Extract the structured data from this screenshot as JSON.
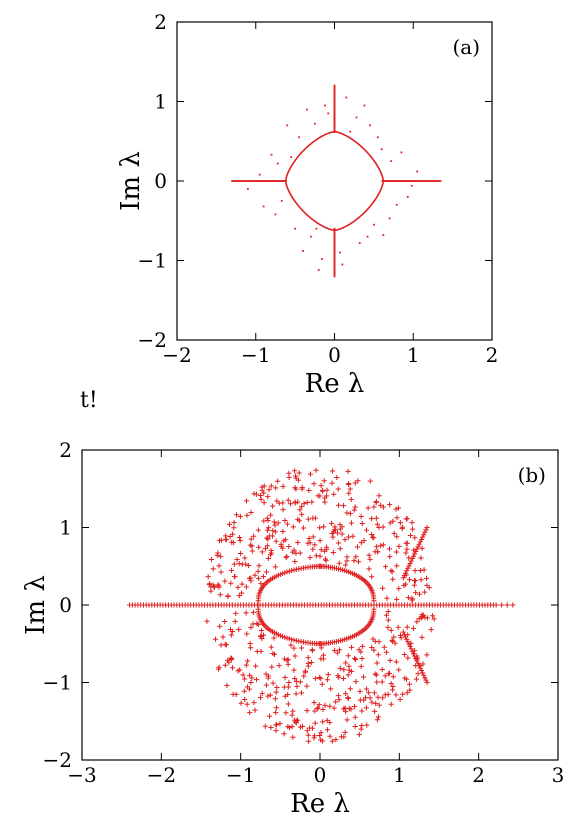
{
  "stray_text": "t!",
  "chart_data": [
    {
      "type": "scatter",
      "panel_label": "(a)",
      "xlabel": "Re λ",
      "ylabel": "Im λ",
      "xlim": [
        -2,
        2
      ],
      "ylim": [
        -2,
        2
      ],
      "x_ticks": [
        -2,
        -1,
        0,
        1,
        2
      ],
      "y_ticks": [
        -2,
        -1,
        0,
        1,
        2
      ],
      "x_tick_labels": [
        "−2",
        "−1",
        "0",
        "1",
        "2"
      ],
      "y_tick_labels": [
        "−2",
        "−1",
        "0",
        "1",
        "2"
      ],
      "marker": "dot",
      "color": "#e02020",
      "grid": false,
      "closed_curve": {
        "shape": "astroid-like",
        "real_extent": 0.62,
        "imag_extent": 0.62,
        "exponent": 1.35
      },
      "real_axis_spread": [
        -1.3,
        1.35
      ],
      "imag_axis_spread": [
        -1.2,
        1.2
      ],
      "scattered_points": [
        [
          -0.8,
          0.33
        ],
        [
          -0.72,
          0.22
        ],
        [
          -0.55,
          0.3
        ],
        [
          -0.9,
          -0.32
        ],
        [
          -0.67,
          -0.25
        ],
        [
          -0.75,
          -0.42
        ],
        [
          0.72,
          0.25
        ],
        [
          0.85,
          0.36
        ],
        [
          0.6,
          0.4
        ],
        [
          0.79,
          -0.3
        ],
        [
          0.7,
          -0.47
        ],
        [
          0.93,
          -0.2
        ],
        [
          -0.25,
          0.72
        ],
        [
          0.28,
          0.8
        ],
        [
          -0.35,
          0.9
        ],
        [
          0.45,
          0.7
        ],
        [
          -0.12,
          0.95
        ],
        [
          0.15,
          1.05
        ],
        [
          -0.3,
          -0.7
        ],
        [
          0.32,
          -0.78
        ],
        [
          -0.4,
          -0.88
        ],
        [
          0.42,
          -0.7
        ],
        [
          -0.16,
          -0.98
        ],
        [
          0.1,
          -1.05
        ],
        [
          -0.45,
          0.55
        ],
        [
          0.5,
          -0.55
        ],
        [
          -0.5,
          -0.6
        ],
        [
          0.55,
          0.55
        ],
        [
          -0.95,
          0.08
        ],
        [
          0.98,
          -0.06
        ],
        [
          -0.08,
          0.85
        ],
        [
          0.07,
          -0.9
        ],
        [
          -0.6,
          0.7
        ],
        [
          0.62,
          -0.68
        ],
        [
          0.38,
          0.95
        ],
        [
          -0.2,
          -1.12
        ],
        [
          1.05,
          0.12
        ],
        [
          -1.1,
          -0.1
        ],
        [
          0.2,
          0.62
        ],
        [
          -0.23,
          -0.6
        ]
      ]
    },
    {
      "type": "scatter",
      "panel_label": "(b)",
      "xlabel": "Re λ",
      "ylabel": "Im λ",
      "xlim": [
        -3,
        3
      ],
      "ylim": [
        -2,
        2
      ],
      "x_ticks": [
        -3,
        -2,
        -1,
        0,
        1,
        2,
        3
      ],
      "y_ticks": [
        -2,
        -1,
        0,
        1,
        2
      ],
      "x_tick_labels": [
        "−3",
        "−2",
        "−1",
        "0",
        "1",
        "2",
        "3"
      ],
      "y_tick_labels": [
        "−2",
        "−1",
        "0",
        "1",
        "2"
      ],
      "marker": "plus",
      "color": "#e02020",
      "grid": false,
      "closed_curve": {
        "shape": "flattened-oval",
        "real_extent_left": -0.78,
        "real_extent_right": 0.68,
        "imag_extent": 0.5
      },
      "real_axis_spread": [
        -2.4,
        2.5
      ],
      "cloud": {
        "real_range": [
          -1.45,
          1.45
        ],
        "imag_range": [
          -1.78,
          1.78
        ],
        "point_count": 650
      },
      "right_branch": {
        "real_range": [
          1.05,
          1.35
        ],
        "imag_range": [
          0.35,
          1.0
        ]
      }
    }
  ]
}
